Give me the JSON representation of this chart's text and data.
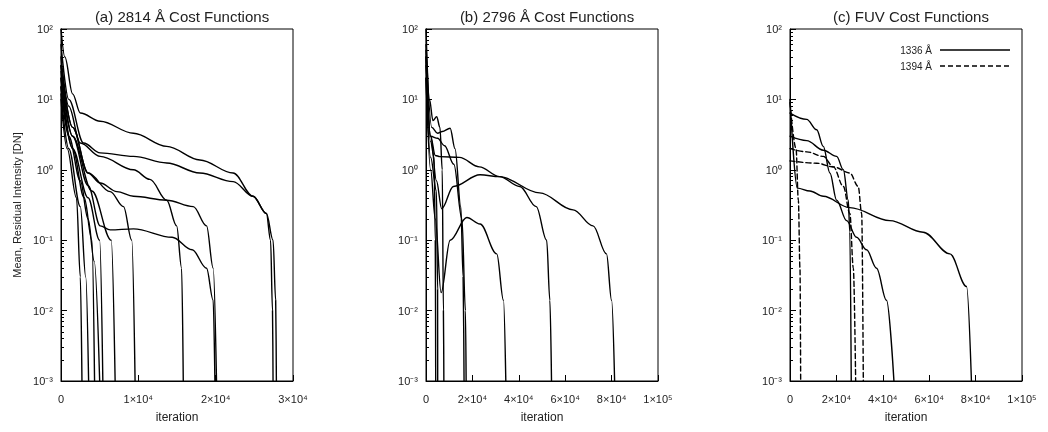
{
  "chart_data": [
    {
      "type": "line",
      "title": "(a) 2814 Å Cost Functions",
      "xlabel": "iteration",
      "ylabel": "Mean, Residual Intensity [DN]",
      "log": "y",
      "grid": false,
      "legend": false,
      "xlim": [
        0,
        30000
      ],
      "xticks": [
        {
          "value": 0,
          "label": "0"
        },
        {
          "value": 10000,
          "label": "1×10⁴"
        },
        {
          "value": 20000,
          "label": "2×10⁴"
        },
        {
          "value": 30000,
          "label": "3×10⁴"
        }
      ],
      "ylim": [
        0.001,
        100
      ],
      "yticks": [
        {
          "value": 0.001,
          "label": "10⁻³"
        },
        {
          "value": 0.01,
          "label": "10⁻²"
        },
        {
          "value": 0.1,
          "label": "10⁻¹"
        },
        {
          "value": 1,
          "label": "10⁰"
        },
        {
          "value": 10,
          "label": "10¹"
        },
        {
          "value": 100,
          "label": "10²"
        }
      ],
      "series": [
        {
          "color": "#000000",
          "x": [
            0,
            500,
            1500,
            2500,
            5070,
            9370,
            13670,
            17960,
            22260,
            24840,
            26560,
            27420,
            27760,
            27850
          ],
          "values": [
            100,
            40,
            12,
            6.4,
            4.9,
            3.3,
            2.15,
            1.38,
            0.9,
            0.42,
            0.24,
            0.1,
            0.014,
            0.001
          ]
        },
        {
          "color": "#000000",
          "x": [
            0,
            1000,
            2920,
            5070,
            9370,
            13670,
            17960,
            22260,
            24840,
            26560,
            27100,
            27350,
            27420
          ],
          "values": [
            60,
            10,
            2.4,
            1.74,
            1.55,
            1.25,
            0.9,
            0.68,
            0.42,
            0.24,
            0.1,
            0.01,
            0.001
          ]
        },
        {
          "color": "#000000",
          "x": [
            0,
            1000,
            2500,
            5070,
            9370,
            11500,
            13670,
            14950,
            15600,
            15810
          ],
          "values": [
            40,
            8,
            2.4,
            1.55,
            1,
            0.73,
            0.37,
            0.16,
            0.04,
            0.001
          ]
        },
        {
          "color": "#000000",
          "x": [
            0,
            1500,
            3500,
            5070,
            7220,
            9370,
            13670,
            17100,
            18820,
            19680,
            20110
          ],
          "values": [
            30,
            4,
            0.9,
            0.65,
            0.49,
            0.42,
            0.37,
            0.3,
            0.16,
            0.04,
            0.001
          ]
        },
        {
          "color": "#000000",
          "x": [
            0,
            1500,
            3500,
            5070,
            6360,
            9370,
            14370,
            16950,
            18820,
            19680,
            19900
          ],
          "values": [
            25,
            3,
            0.6,
            0.16,
            0.14,
            0.145,
            0.11,
            0.073,
            0.04,
            0.014,
            0.001
          ]
        },
        {
          "color": "#000000",
          "x": [
            0,
            1500,
            3500,
            6360,
            8080,
            9150,
            9580
          ],
          "values": [
            30,
            4,
            0.9,
            0.49,
            0.3,
            0.1,
            0.001
          ]
        },
        {
          "color": "#000000",
          "x": [
            0,
            1500,
            4000,
            6500,
            7000
          ],
          "values": [
            20,
            3,
            0.5,
            0.1,
            0.001
          ]
        },
        {
          "color": "#000000",
          "x": [
            0,
            1000,
            2500,
            3500,
            4300,
            5000
          ],
          "values": [
            15,
            3,
            0.7,
            0.2,
            0.05,
            0.001
          ]
        },
        {
          "color": "#000000",
          "x": [
            0,
            1000,
            2500,
            3200,
            3570
          ],
          "values": [
            12,
            2,
            0.3,
            0.03,
            0.001
          ]
        },
        {
          "color": "#000000",
          "x": [
            0,
            800,
            2000,
            2500,
            2710
          ],
          "values": [
            10,
            2,
            0.4,
            0.03,
            0.001
          ]
        },
        {
          "color": "#000000",
          "x": [
            0,
            1500,
            3000,
            4000,
            4340
          ],
          "values": [
            15,
            2,
            0.4,
            0.1,
            0.001
          ]
        },
        {
          "color": "#000000",
          "x": [
            0,
            1500,
            3500,
            5000,
            5410
          ],
          "values": [
            20,
            2,
            0.4,
            0.1,
            0.001
          ]
        }
      ]
    },
    {
      "type": "line",
      "title": "(b) 2796 Å Cost Functions",
      "xlabel": "iteration",
      "log": "y",
      "grid": false,
      "legend": false,
      "xlim": [
        0,
        100000
      ],
      "xticks": [
        {
          "value": 0,
          "label": "0"
        },
        {
          "value": 20000,
          "label": "2×10⁴"
        },
        {
          "value": 40000,
          "label": "4×10⁴"
        },
        {
          "value": 60000,
          "label": "6×10⁴"
        },
        {
          "value": 80000,
          "label": "8×10⁴"
        },
        {
          "value": 100000,
          "label": "1×10⁵"
        }
      ],
      "ylim": [
        0.001,
        100
      ],
      "yticks": [
        {
          "value": 0.001,
          "label": "10⁻³"
        },
        {
          "value": 0.01,
          "label": "10⁻²"
        },
        {
          "value": 0.1,
          "label": "10⁻¹"
        },
        {
          "value": 1,
          "label": "10⁰"
        },
        {
          "value": 10,
          "label": "10¹"
        },
        {
          "value": 100,
          "label": "10²"
        }
      ],
      "series": [
        {
          "color": "#000000",
          "x": [
            0,
            2000,
            4000,
            6000,
            14400,
            23000,
            31700,
            49000,
            63400,
            72000,
            77800,
            80000,
            81300
          ],
          "values": [
            50,
            3,
            1.6,
            1.54,
            1.5,
            1.1,
            0.8,
            0.47,
            0.27,
            0.16,
            0.064,
            0.014,
            0.001
          ]
        },
        {
          "color": "#000000",
          "x": [
            0,
            2000,
            4500,
            6770,
            11800,
            23300,
            31700,
            40400,
            47500,
            52000,
            53400,
            54100
          ],
          "values": [
            40,
            3,
            0.7,
            0.28,
            0.58,
            0.85,
            0.8,
            0.58,
            0.3,
            0.1,
            0.014,
            0.001
          ]
        },
        {
          "color": "#000000",
          "x": [
            0,
            2000,
            4000,
            6500,
            10400,
            17600,
            23300,
            30500,
            33400,
            34400
          ],
          "values": [
            20,
            1,
            0.2,
            0.018,
            0.1,
            0.21,
            0.17,
            0.064,
            0.014,
            0.001
          ]
        },
        {
          "color": "#000000",
          "x": [
            0,
            1500,
            3000,
            4600,
            6000,
            7000,
            7500,
            7700
          ],
          "values": [
            100,
            10,
            5,
            5.7,
            4,
            1,
            0.01,
            0.001
          ]
        },
        {
          "color": "#000000",
          "x": [
            0,
            2500,
            5000,
            7000,
            10400,
            12500,
            15000,
            16000,
            16400
          ],
          "values": [
            60,
            4,
            3.3,
            3.5,
            3.9,
            2,
            0.3,
            0.03,
            0.001
          ]
        },
        {
          "color": "#000000",
          "x": [
            0,
            2000,
            5000,
            8000,
            12000,
            15500,
            17000,
            17300
          ],
          "values": [
            40,
            3,
            2.8,
            2.2,
            1.2,
            0.2,
            0.01,
            0.001
          ]
        },
        {
          "color": "#000000",
          "x": [
            0,
            2000,
            3500,
            4000,
            4180
          ],
          "values": [
            30,
            2.5,
            1.5,
            0.1,
            0.001
          ]
        },
        {
          "color": "#000000",
          "x": [
            0,
            2000,
            4500,
            5000,
            5040
          ],
          "values": [
            20,
            1.5,
            0.5,
            0.02,
            0.001
          ]
        }
      ]
    },
    {
      "type": "line",
      "title": "(c) FUV Cost Functions",
      "xlabel": "iteration",
      "log": "y",
      "grid": false,
      "legend": "top right",
      "xlim": [
        0,
        100000
      ],
      "xticks": [
        {
          "value": 0,
          "label": "0"
        },
        {
          "value": 20000,
          "label": "2×10⁴"
        },
        {
          "value": 40000,
          "label": "4×10⁴"
        },
        {
          "value": 60000,
          "label": "6×10⁴"
        },
        {
          "value": 80000,
          "label": "8×10⁴"
        },
        {
          "value": 100000,
          "label": "1×10⁵"
        }
      ],
      "ylim": [
        0.001,
        100
      ],
      "yticks": [
        {
          "value": 0.001,
          "label": "10⁻³"
        },
        {
          "value": 0.01,
          "label": "10⁻²"
        },
        {
          "value": 0.1,
          "label": "10⁻¹"
        },
        {
          "value": 1,
          "label": "10⁰"
        },
        {
          "value": 10,
          "label": "10¹"
        },
        {
          "value": 100,
          "label": "10²"
        }
      ],
      "series": [
        {
          "name": "1336 Å",
          "color": "#000000",
          "line_style": "solid",
          "x": [
            0,
            7200,
            11500,
            14350,
            17200,
            20100,
            24400,
            28700,
            33000,
            37300,
            41600,
            44800
          ],
          "values": [
            6.4,
            5.2,
            3.7,
            2.15,
            0.9,
            0.37,
            0.19,
            0.11,
            0.073,
            0.04,
            0.014,
            0.001
          ]
        },
        {
          "color": "#000000",
          "line_style": "solid",
          "x": [
            0,
            7200,
            14350,
            20100,
            23000,
            25100,
            25800,
            26400
          ],
          "values": [
            3,
            2.6,
            1.9,
            1.55,
            1,
            0.37,
            0.13,
            0.001
          ]
        },
        {
          "color": "#000000",
          "line_style": "solid",
          "x": [
            0,
            3160,
            8600,
            14350,
            25800,
            43000,
            57400,
            68900,
            76100,
            78200
          ],
          "values": [
            10,
            0.55,
            0.5,
            0.42,
            0.29,
            0.19,
            0.13,
            0.064,
            0.022,
            0.001
          ]
        },
        {
          "name": "1394 Å",
          "color": "#000000",
          "line_style": "dashed",
          "x": [
            0,
            7200,
            14350,
            18700,
            23000,
            25800,
            27300,
            28300
          ],
          "values": [
            2,
            1.8,
            1.55,
            1.1,
            0.58,
            0.24,
            0.04,
            0.001
          ]
        },
        {
          "color": "#000000",
          "line_style": "dashed",
          "x": [
            0,
            11500,
            18700,
            25800,
            29400,
            30900,
            31600
          ],
          "values": [
            1.34,
            1.24,
            1.1,
            0.9,
            0.58,
            0.24,
            0.001
          ]
        },
        {
          "color": "#000000",
          "line_style": "dashed",
          "x": [
            0,
            2600,
            3600,
            4300,
            4600
          ],
          "values": [
            9,
            2,
            0.37,
            0.04,
            0.001
          ]
        }
      ]
    }
  ]
}
